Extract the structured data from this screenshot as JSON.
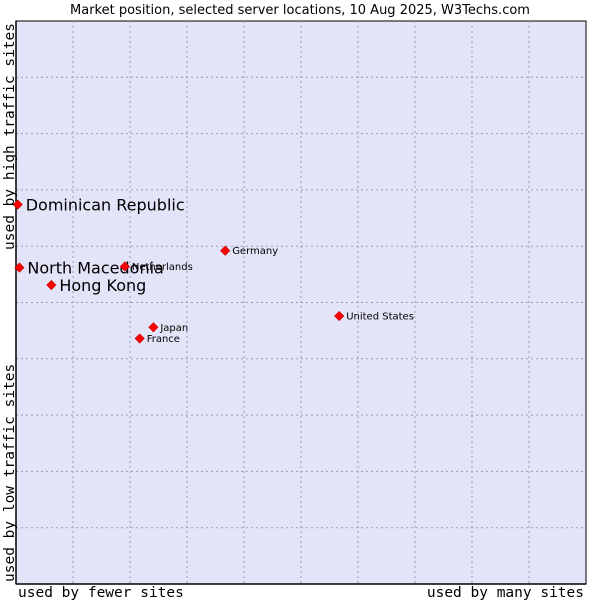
{
  "chart_data": {
    "type": "scatter",
    "title": "Market position, selected server locations, 10 Aug 2025, W3Techs.com",
    "xlabel_left": "used by fewer sites",
    "xlabel_right": "used by many sites",
    "ylabel_bottom": "used by low traffic sites",
    "ylabel_top": "used by high traffic sites",
    "xlim": [
      0,
      100
    ],
    "ylim": [
      0,
      100
    ],
    "grid": true,
    "colors": {
      "plot_bg": "#e4e4f8",
      "grid": "#9a9ab8",
      "axis": "#000000",
      "point": "#ff0000",
      "point_border": "#cc0000"
    },
    "points": [
      {
        "name": "Dominican Republic",
        "x": 0.3,
        "y": 67.4,
        "emphasis": true
      },
      {
        "name": "North Macedonia",
        "x": 0.6,
        "y": 56.2,
        "emphasis": true
      },
      {
        "name": "Hong Kong",
        "x": 6.2,
        "y": 53.1,
        "emphasis": true
      },
      {
        "name": "Netherlands",
        "x": 19.1,
        "y": 56.4,
        "emphasis": false
      },
      {
        "name": "Germany",
        "x": 36.7,
        "y": 59.2,
        "emphasis": false
      },
      {
        "name": "United States",
        "x": 56.7,
        "y": 47.6,
        "emphasis": false
      },
      {
        "name": "Japan",
        "x": 24.1,
        "y": 45.6,
        "emphasis": false
      },
      {
        "name": "France",
        "x": 21.7,
        "y": 43.6,
        "emphasis": false
      }
    ]
  }
}
